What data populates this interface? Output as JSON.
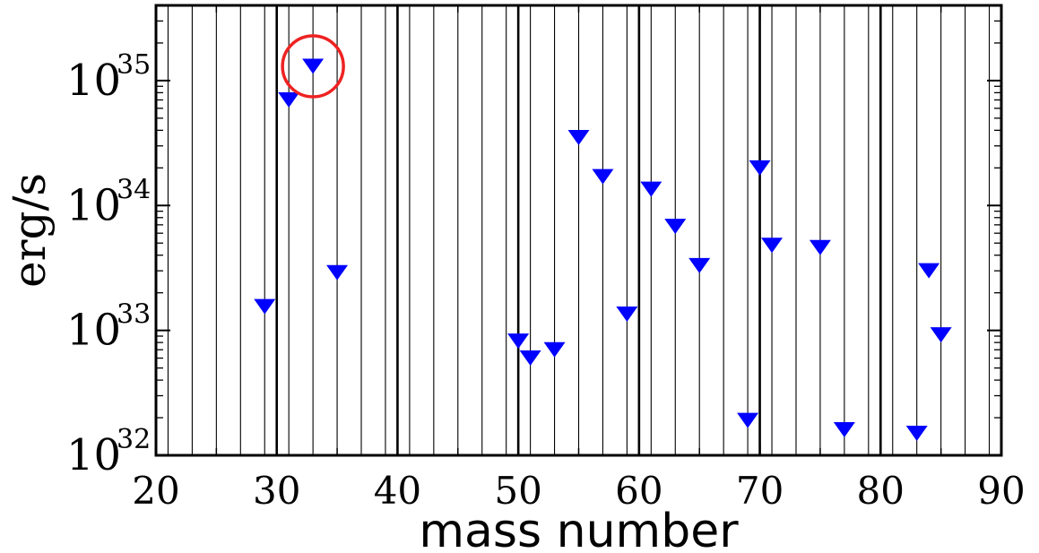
{
  "chart_data": {
    "type": "scatter",
    "title": "",
    "xlabel": "mass number",
    "ylabel": "erg/s",
    "xlim": [
      20,
      90
    ],
    "ylim": [
      1e+32,
      4e+35
    ],
    "yscale": "log",
    "x_ticks": [
      20,
      30,
      40,
      50,
      60,
      70,
      80,
      90
    ],
    "y_ticks": [
      {
        "base": "10",
        "exp": "32",
        "value": 1e+32
      },
      {
        "base": "10",
        "exp": "33",
        "value": 1e+33
      },
      {
        "base": "10",
        "exp": "34",
        "value": 1e+34
      },
      {
        "base": "10",
        "exp": "35",
        "value": 1e+35
      }
    ],
    "marker": "triangle-down",
    "marker_color": "#0000ff",
    "grid": "vertical lines at every odd mass number, thicker lines at multiples of 10",
    "highlight": {
      "x": 33,
      "shape": "circle",
      "color": "#ee2222"
    },
    "series": [
      {
        "points": [
          {
            "x": 29,
            "y": 1.55e+33
          },
          {
            "x": 31,
            "y": 7e+34
          },
          {
            "x": 33,
            "y": 1.3e+35
          },
          {
            "x": 35,
            "y": 2.9e+33
          },
          {
            "x": 50,
            "y": 8.2e+32
          },
          {
            "x": 51,
            "y": 6e+32
          },
          {
            "x": 53,
            "y": 7e+32
          },
          {
            "x": 55,
            "y": 3.5e+34
          },
          {
            "x": 57,
            "y": 1.7e+34
          },
          {
            "x": 59,
            "y": 1.35e+33
          },
          {
            "x": 61,
            "y": 1.35e+34
          },
          {
            "x": 63,
            "y": 6.8e+33
          },
          {
            "x": 65,
            "y": 3.3e+33
          },
          {
            "x": 69,
            "y": 1.9e+32
          },
          {
            "x": 70,
            "y": 2e+34
          },
          {
            "x": 71,
            "y": 4.8e+33
          },
          {
            "x": 75,
            "y": 4.6e+33
          },
          {
            "x": 77,
            "y": 1.6e+32
          },
          {
            "x": 83,
            "y": 1.5e+32
          },
          {
            "x": 84,
            "y": 3e+33
          },
          {
            "x": 85,
            "y": 9.2e+32
          }
        ]
      }
    ]
  }
}
